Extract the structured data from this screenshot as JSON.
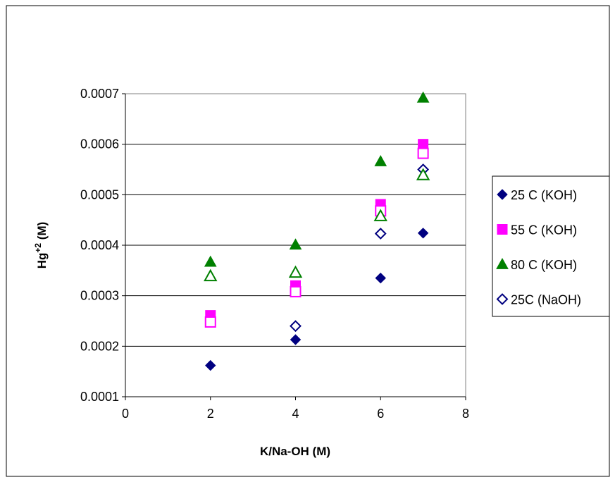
{
  "chart_data": {
    "type": "scatter",
    "title": "",
    "xlabel": "K/Na-OH (M)",
    "ylabel": {
      "base": "Hg",
      "sup": "+2",
      "suffix": " (M)"
    },
    "xlim": [
      0,
      8
    ],
    "ylim": [
      0.0001,
      0.0007
    ],
    "x_ticks": [
      "0",
      "2",
      "4",
      "6",
      "8"
    ],
    "y_ticks": [
      "0.0001",
      "0.0002",
      "0.0003",
      "0.0004",
      "0.0005",
      "0.0006",
      "0.0007"
    ],
    "grid": "horizontal",
    "legend_position": "right",
    "series": [
      {
        "name": "25 C (KOH)",
        "marker": "diamond",
        "filled": true,
        "color": "#000080",
        "points": [
          [
            2,
            0.000162
          ],
          [
            4,
            0.000213
          ],
          [
            6,
            0.000335
          ],
          [
            7,
            0.000424
          ]
        ]
      },
      {
        "name": "55 C (KOH)",
        "marker": "square",
        "filled": true,
        "color": "#FF00FF",
        "points": [
          [
            2,
            0.000261
          ],
          [
            4,
            0.00032
          ],
          [
            6,
            0.000481
          ],
          [
            7,
            0.0006
          ]
        ]
      },
      {
        "name": "80 C (KOH)",
        "marker": "triangle",
        "filled": true,
        "color": "#008000",
        "points": [
          [
            2,
            0.000367
          ],
          [
            4,
            0.000401
          ],
          [
            6,
            0.000566
          ],
          [
            7,
            0.000692
          ]
        ]
      },
      {
        "name": "25C (NaOH)",
        "marker": "diamond",
        "filled": false,
        "color": "#000080",
        "points": [
          [
            4,
            0.00024
          ],
          [
            6,
            0.000423
          ],
          [
            7,
            0.00055
          ]
        ]
      },
      {
        "name": "",
        "marker": "square",
        "filled": false,
        "color": "#FF00FF",
        "in_legend": false,
        "points": [
          [
            2,
            0.000248
          ],
          [
            4,
            0.000308
          ],
          [
            6,
            0.000468
          ],
          [
            7,
            0.000582
          ]
        ]
      },
      {
        "name": "",
        "marker": "triangle",
        "filled": false,
        "color": "#008000",
        "in_legend": false,
        "points": [
          [
            2,
            0.000339
          ],
          [
            4,
            0.000346
          ],
          [
            6,
            0.000458
          ],
          [
            7,
            0.000539
          ]
        ]
      }
    ]
  }
}
